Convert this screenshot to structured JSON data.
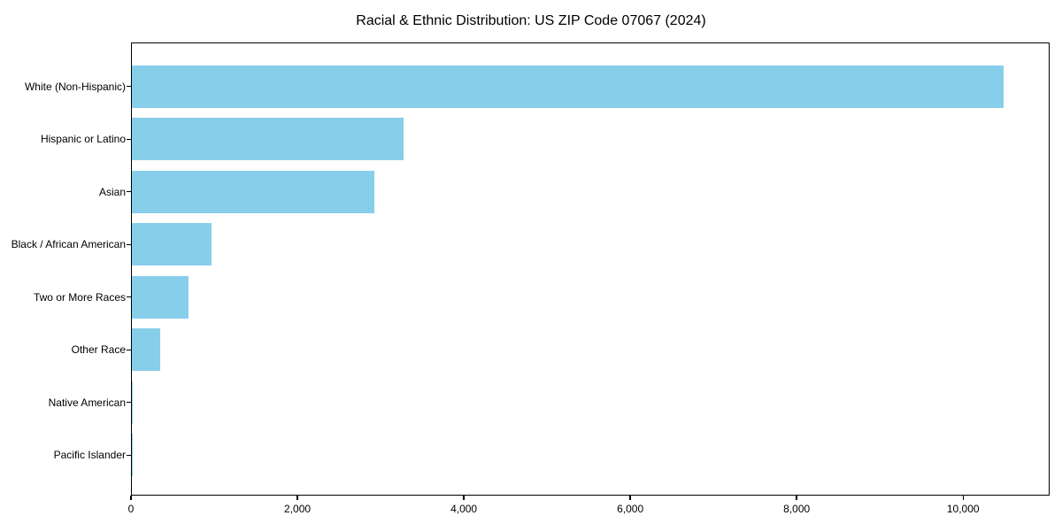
{
  "page": {
    "background": "#ffffff"
  },
  "chart_data": {
    "type": "bar",
    "orientation": "horizontal",
    "title": "Racial & Ethnic Distribution: US ZIP Code 07067 (2024)",
    "categories": [
      "White (Non-Hispanic)",
      "Hispanic or Latino",
      "Asian",
      "Black / African American",
      "Two or More Races",
      "Other Race",
      "Native American",
      "Pacific Islander"
    ],
    "values": [
      10500,
      3275,
      2915,
      960,
      680,
      340,
      15,
      8
    ],
    "title_color": "#000000",
    "xlabel": "",
    "ylabel": "",
    "xlim": [
      0,
      11040
    ],
    "xticks": [
      0,
      2000,
      4000,
      6000,
      8000,
      10000
    ],
    "xtick_labels": [
      "0",
      "2,000",
      "4,000",
      "6,000",
      "8,000",
      "10,000"
    ],
    "bar_color": "#87CEEB",
    "axis_color": "#000000",
    "text_color": "#000000",
    "grid": false,
    "legend_position": "none"
  }
}
